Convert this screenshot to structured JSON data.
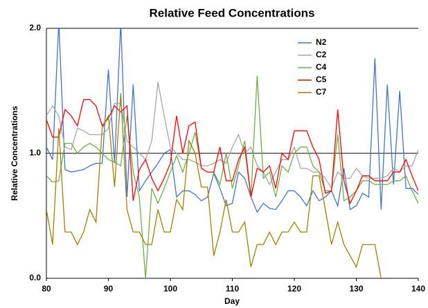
{
  "chart_data": {
    "type": "line",
    "title": "Relative Feed Concentrations",
    "x_label": "Day",
    "y_label": "Relative Concentrations",
    "x": [
      80,
      81,
      82,
      83,
      84,
      85,
      86,
      87,
      88,
      89,
      90,
      91,
      92,
      93,
      94,
      95,
      96,
      97,
      98,
      99,
      100,
      101,
      102,
      103,
      104,
      105,
      106,
      107,
      108,
      109,
      110,
      111,
      112,
      113,
      114,
      115,
      116,
      117,
      118,
      119,
      120,
      121,
      122,
      123,
      124,
      125,
      126,
      127,
      128,
      129,
      130,
      131,
      132,
      133,
      134,
      135,
      136,
      137,
      138,
      139,
      140
    ],
    "xlim": [
      80,
      140
    ],
    "xticks": [
      80,
      90,
      100,
      110,
      120,
      130,
      140
    ],
    "ylim": [
      0,
      2
    ],
    "yticks": [
      {
        "value": 0,
        "label": "0.0"
      },
      {
        "value": 1,
        "label": "1.0"
      },
      {
        "value": 2,
        "label": "2.0"
      }
    ],
    "grid": true,
    "legend": "upper right",
    "series": [
      {
        "name": "N2",
        "color": "#4472c4",
        "values": [
          1.05,
          0.95,
          2.05,
          0.87,
          0.85,
          0.86,
          0.87,
          0.9,
          0.92,
          0.92,
          1.67,
          0.92,
          2.05,
          0.65,
          1.55,
          0.7,
          0.78,
          0.85,
          0.92,
          1.0,
          1.03,
          0.65,
          0.7,
          0.7,
          0.67,
          0.62,
          0.65,
          0.84,
          0.72,
          0.58,
          0.6,
          0.85,
          0.8,
          0.65,
          0.53,
          0.6,
          0.56,
          0.55,
          0.62,
          0.7,
          0.7,
          0.65,
          0.58,
          0.7,
          0.62,
          0.65,
          0.7,
          0.58,
          0.88,
          0.55,
          0.58,
          0.68,
          0.65,
          1.76,
          0.55,
          1.55,
          0.75,
          1.5,
          0.72,
          0.72,
          0.67
        ]
      },
      {
        "name": "C2",
        "color": "#a5a5a5",
        "values": [
          1.3,
          1.38,
          1.3,
          1.05,
          1.03,
          1.2,
          1.18,
          1.15,
          1.15,
          1.15,
          1.2,
          1.4,
          1.4,
          1.1,
          1.05,
          1.0,
          0.95,
          1.1,
          1.57,
          1.3,
          1.05,
          1.0,
          0.95,
          0.95,
          0.93,
          0.9,
          0.9,
          0.92,
          0.95,
          0.92,
          1.05,
          1.15,
          1.0,
          1.05,
          0.9,
          0.85,
          0.75,
          0.85,
          0.95,
          0.95,
          1.05,
          0.88,
          0.88,
          0.85,
          0.85,
          0.8,
          0.72,
          0.85,
          0.8,
          0.8,
          0.88,
          0.82,
          0.8,
          0.8,
          0.8,
          0.82,
          0.88,
          0.85,
          0.9,
          0.9,
          1.03
        ]
      },
      {
        "name": "C4",
        "color": "#70ad47",
        "values": [
          0.82,
          0.77,
          0.78,
          1.08,
          1.08,
          1.0,
          1.05,
          1.08,
          1.05,
          1.0,
          0.95,
          0.93,
          0.9,
          1.3,
          0.85,
          0.65,
          0.0,
          0.72,
          0.6,
          0.72,
          0.85,
          0.98,
          0.85,
          1.0,
          1.17,
          0.88,
          0.85,
          0.85,
          0.75,
          1.0,
          0.72,
          0.9,
          1.1,
          0.65,
          1.62,
          0.8,
          0.85,
          0.65,
          0.9,
          0.85,
          1.0,
          1.05,
          1.05,
          0.9,
          0.85,
          0.7,
          0.7,
          1.15,
          0.62,
          0.65,
          0.7,
          0.78,
          0.78,
          0.75,
          0.75,
          0.75,
          0.78,
          0.78,
          0.82,
          0.7,
          0.6
        ]
      },
      {
        "name": "C5",
        "color": "#ff0000",
        "values": [
          1.27,
          1.13,
          1.13,
          1.35,
          1.3,
          1.22,
          1.43,
          1.43,
          1.38,
          1.22,
          1.28,
          1.38,
          1.33,
          1.38,
          0.62,
          0.87,
          0.95,
          0.8,
          0.7,
          0.8,
          0.92,
          1.3,
          1.0,
          1.22,
          1.25,
          0.88,
          0.85,
          0.85,
          1.05,
          0.78,
          0.78,
          0.95,
          1.05,
          0.65,
          0.88,
          0.85,
          0.9,
          0.72,
          1.0,
          0.95,
          1.18,
          1.18,
          1.18,
          1.05,
          0.95,
          0.68,
          0.7,
          1.35,
          0.78,
          0.6,
          0.7,
          0.82,
          0.82,
          0.78,
          0.78,
          0.78,
          0.85,
          0.85,
          0.95,
          0.82,
          0.7
        ]
      },
      {
        "name": "C7",
        "color": "#a08000",
        "values": [
          0.55,
          0.27,
          1.2,
          0.37,
          0.37,
          0.27,
          0.37,
          0.55,
          0.45,
          1.2,
          1.3,
          0.73,
          1.48,
          0.55,
          0.37,
          0.37,
          0.27,
          0.27,
          0.55,
          0.37,
          0.37,
          0.63,
          0.55,
          1.1,
          1.0,
          0.73,
          0.73,
          0.18,
          0.37,
          0.63,
          0.37,
          0.37,
          0.45,
          0.09,
          0.27,
          0.27,
          0.37,
          0.27,
          0.37,
          0.37,
          0.45,
          0.37,
          0.37,
          0.82,
          0.82,
          0.55,
          0.27,
          0.45,
          0.27,
          0.18,
          0.09,
          0.27,
          0.27,
          0.27,
          0.0,
          null,
          null,
          null,
          null,
          null,
          null
        ]
      }
    ]
  }
}
